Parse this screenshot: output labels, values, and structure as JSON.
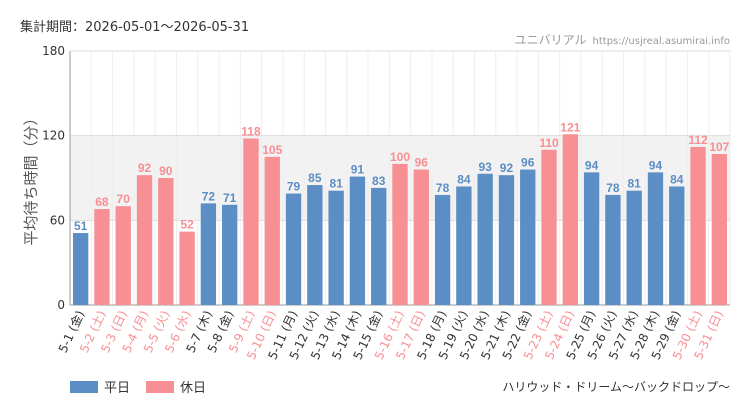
{
  "header": {
    "period": "集計期間：2026-05-01～2026-05-31",
    "site_name": "ユニバリアル",
    "site_url": "https://usjreal.asumirai.info"
  },
  "footer": {
    "attraction": "ハリウッド・ドリーム～バックドロップ～"
  },
  "colors": {
    "weekday": "#5b8ec4",
    "holiday": "#f78f93",
    "band": "#f2f2f2",
    "grid": "#dddddd"
  },
  "chart_data": {
    "type": "bar",
    "ylabel": "平均待ち時間（分）",
    "ylim": [
      0,
      180
    ],
    "yticks": [
      0,
      60,
      120,
      180
    ],
    "highlight_band": [
      60,
      120
    ],
    "legend": [
      {
        "key": "weekday",
        "label": "平日"
      },
      {
        "key": "holiday",
        "label": "休日"
      }
    ],
    "categories": [
      "5-1 (金)",
      "5-2 (土)",
      "5-3 (日)",
      "5-4 (月)",
      "5-5 (火)",
      "5-6 (水)",
      "5-7 (木)",
      "5-8 (金)",
      "5-9 (土)",
      "5-10 (日)",
      "5-11 (月)",
      "5-12 (火)",
      "5-13 (水)",
      "5-14 (木)",
      "5-15 (金)",
      "5-16 (土)",
      "5-17 (日)",
      "5-18 (月)",
      "5-19 (火)",
      "5-20 (水)",
      "5-21 (木)",
      "5-22 (金)",
      "5-23 (土)",
      "5-24 (日)",
      "5-25 (月)",
      "5-26 (火)",
      "5-27 (水)",
      "5-28 (木)",
      "5-29 (金)",
      "5-30 (土)",
      "5-31 (日)"
    ],
    "values": [
      51,
      68,
      70,
      92,
      90,
      52,
      72,
      71,
      118,
      105,
      79,
      85,
      81,
      91,
      83,
      100,
      96,
      78,
      84,
      93,
      92,
      96,
      110,
      121,
      94,
      78,
      81,
      94,
      84,
      112,
      107
    ],
    "day_type": [
      "weekday",
      "holiday",
      "holiday",
      "holiday",
      "holiday",
      "holiday",
      "weekday",
      "weekday",
      "holiday",
      "holiday",
      "weekday",
      "weekday",
      "weekday",
      "weekday",
      "weekday",
      "holiday",
      "holiday",
      "weekday",
      "weekday",
      "weekday",
      "weekday",
      "weekday",
      "holiday",
      "holiday",
      "weekday",
      "weekday",
      "weekday",
      "weekday",
      "weekday",
      "holiday",
      "holiday"
    ]
  }
}
